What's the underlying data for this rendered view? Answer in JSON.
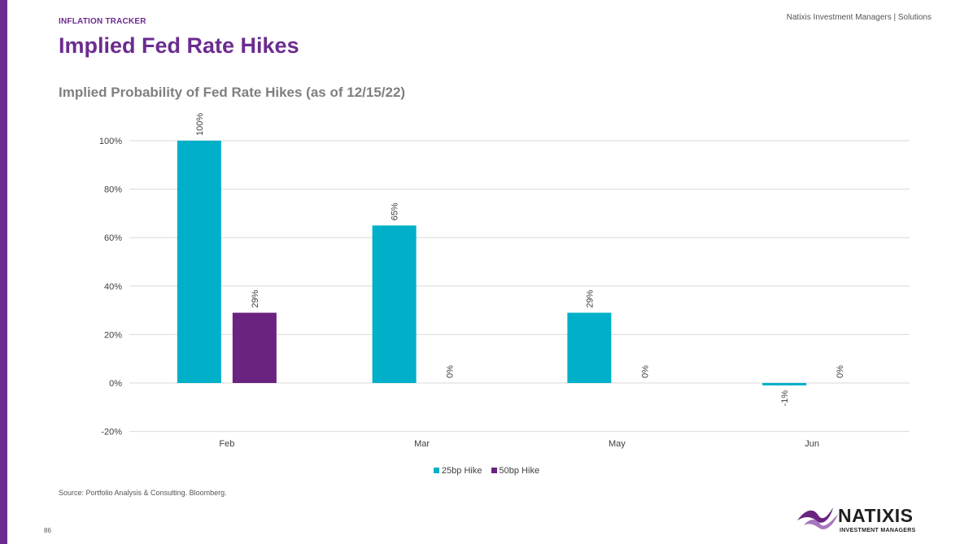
{
  "header": {
    "tag": "INFLATION TRACKER",
    "company": "Natixis Investment Managers | Solutions",
    "title": "Implied Fed Rate Hikes"
  },
  "footer": {
    "source": "Source: Portfolio Analysis & Consulting. Bloomberg.",
    "page_number": "86"
  },
  "logo": {
    "name": "NATIXIS",
    "tagline": "INVESTMENT MANAGERS"
  },
  "colors": {
    "accent": "#6b2c8f",
    "series1": "#00b0c8",
    "series2": "#6b2380",
    "grid": "#d9d9d9"
  },
  "chart_data": {
    "type": "bar",
    "title": "Implied Probability of Fed Rate Hikes (as of 12/15/22)",
    "categories": [
      "Feb",
      "Mar",
      "May",
      "Jun"
    ],
    "series": [
      {
        "name": "25bp Hike",
        "values": [
          100,
          65,
          29,
          -1
        ],
        "labels": [
          "100%",
          "65%",
          "29%",
          "-1%"
        ]
      },
      {
        "name": "50bp Hike",
        "values": [
          29,
          0,
          0,
          0
        ],
        "labels": [
          "29%",
          "0%",
          "0%",
          "0%"
        ]
      }
    ],
    "ylim": [
      -20,
      100
    ],
    "yticks": [
      -20,
      0,
      20,
      40,
      60,
      80,
      100
    ],
    "ytick_labels": [
      "-20%",
      "0%",
      "20%",
      "40%",
      "60%",
      "80%",
      "100%"
    ],
    "xlabel": "",
    "ylabel": "",
    "grid": true,
    "legend": "bottom"
  }
}
